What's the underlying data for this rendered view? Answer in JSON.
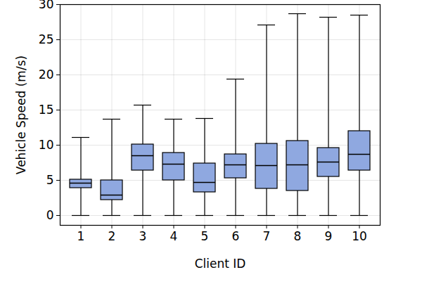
{
  "chart_data": {
    "type": "box",
    "xlabel": "Client ID",
    "ylabel": "Vehicle Speed (m/s)",
    "categories": [
      "1",
      "2",
      "3",
      "4",
      "5",
      "6",
      "7",
      "8",
      "9",
      "10"
    ],
    "min": [
      0,
      0,
      0,
      0,
      0,
      0,
      0,
      0,
      0,
      0
    ],
    "q1": [
      3.9,
      2.2,
      6.4,
      5.0,
      3.3,
      5.3,
      3.8,
      3.5,
      5.5,
      6.4
    ],
    "median": [
      4.6,
      2.9,
      8.5,
      7.3,
      4.7,
      7.2,
      7.1,
      7.2,
      7.6,
      8.7
    ],
    "q3": [
      5.1,
      5.0,
      10.1,
      8.9,
      7.4,
      8.7,
      10.2,
      10.6,
      9.6,
      12.0
    ],
    "max": [
      11.1,
      13.7,
      15.7,
      13.7,
      13.8,
      19.4,
      27.1,
      28.7,
      28.2,
      28.5
    ],
    "color": "#8fa8e0",
    "ylim": [
      -1.4,
      30
    ],
    "yticks": [
      0,
      5,
      10,
      15,
      20,
      25,
      30
    ],
    "grid": true
  }
}
